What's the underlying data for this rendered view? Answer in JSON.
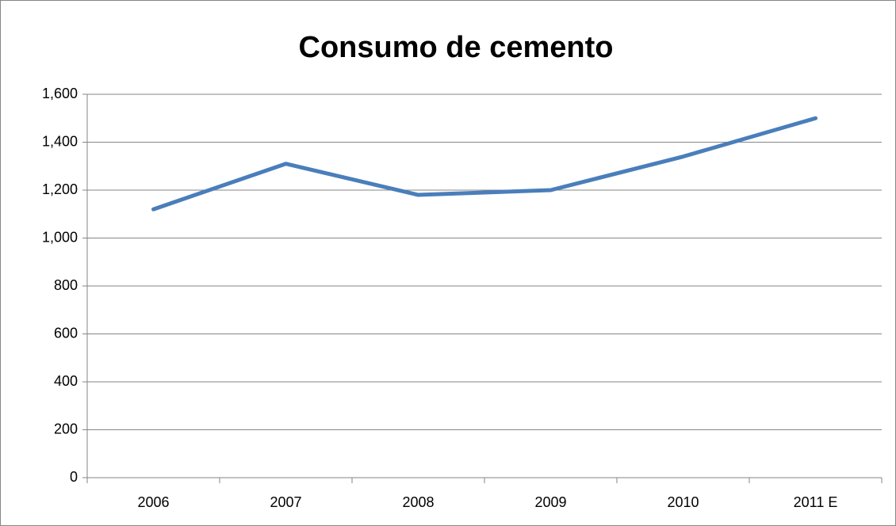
{
  "chart_data": {
    "type": "line",
    "title": "Consumo de cemento",
    "categories": [
      "2006",
      "2007",
      "2008",
      "2009",
      "2010",
      "2011 E"
    ],
    "series": [
      {
        "name": "Consumo de cemento",
        "color": "#4a7ebb",
        "values": [
          1120,
          1310,
          1180,
          1200,
          1340,
          1500
        ]
      }
    ],
    "ylim": [
      0,
      1600
    ],
    "yticks": [
      0,
      200,
      400,
      600,
      800,
      {
        "value": 1000,
        "label": "1,000"
      },
      {
        "value": 1200,
        "label": "1,200"
      },
      {
        "value": 1400,
        "label": "1,400"
      },
      {
        "value": 1600,
        "label": "1,600"
      }
    ],
    "grid": true
  }
}
